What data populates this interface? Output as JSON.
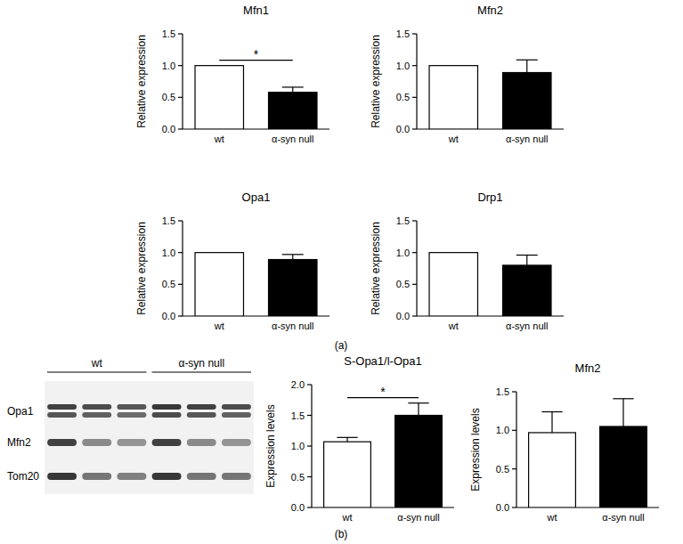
{
  "chart_data": [
    {
      "type": "bar",
      "title": "Mfn1",
      "ylabel": "Relative expression",
      "categories": [
        "wt",
        "α-syn null"
      ],
      "values": [
        1.0,
        0.58
      ],
      "errors": [
        0,
        0.08
      ],
      "colors": [
        "#ffffff",
        "#000000"
      ],
      "ylim": [
        0,
        1.5
      ],
      "yticks": [
        {
          "value": 0,
          "label": "0.0"
        },
        {
          "value": 0.5,
          "label": "0.5"
        },
        {
          "value": 1,
          "label": "1.0"
        },
        {
          "value": 1.5,
          "label": "1.5"
        }
      ],
      "grid": false,
      "annotations": [
        {
          "text": "*",
          "categories": [
            "wt",
            "α-syn null"
          ]
        }
      ]
    },
    {
      "type": "bar",
      "title": "Mfn2",
      "ylabel": "Relative expression",
      "categories": [
        "wt",
        "α-syn null"
      ],
      "values": [
        1.0,
        0.89
      ],
      "errors": [
        0,
        0.2
      ],
      "colors": [
        "#ffffff",
        "#000000"
      ],
      "ylim": [
        0,
        1.5
      ],
      "yticks": [
        {
          "value": 0,
          "label": "0.0"
        },
        {
          "value": 0.5,
          "label": "0.5"
        },
        {
          "value": 1,
          "label": "1.0"
        },
        {
          "value": 1.5,
          "label": "1.5"
        }
      ],
      "grid": false
    },
    {
      "type": "bar",
      "title": "Opa1",
      "ylabel": "Relative expression",
      "categories": [
        "wt",
        "α-syn null"
      ],
      "values": [
        1.0,
        0.89
      ],
      "errors": [
        0,
        0.08
      ],
      "colors": [
        "#ffffff",
        "#000000"
      ],
      "ylim": [
        0,
        1.5
      ],
      "yticks": [
        {
          "value": 0,
          "label": "0.0"
        },
        {
          "value": 0.5,
          "label": "0.5"
        },
        {
          "value": 1,
          "label": "1.0"
        },
        {
          "value": 1.5,
          "label": "1.5"
        }
      ],
      "grid": false
    },
    {
      "type": "bar",
      "title": "Drp1",
      "ylabel": "Relative expression",
      "categories": [
        "wt",
        "α-syn null"
      ],
      "values": [
        1.0,
        0.8
      ],
      "errors": [
        0,
        0.16
      ],
      "colors": [
        "#ffffff",
        "#000000"
      ],
      "ylim": [
        0,
        1.5
      ],
      "yticks": [
        {
          "value": 0,
          "label": "0.0"
        },
        {
          "value": 0.5,
          "label": "0.5"
        },
        {
          "value": 1,
          "label": "1.0"
        },
        {
          "value": 1.5,
          "label": "1.5"
        }
      ],
      "grid": false
    },
    {
      "type": "bar",
      "title": "S-Opa1/l-Opa1",
      "ylabel": "Expression levels",
      "categories": [
        "wt",
        "α-syn null"
      ],
      "values": [
        1.07,
        1.5
      ],
      "errors": [
        0.07,
        0.2
      ],
      "colors": [
        "#ffffff",
        "#000000"
      ],
      "ylim": [
        0,
        2
      ],
      "yticks": [
        {
          "value": 0,
          "label": "0.0"
        },
        {
          "value": 0.5,
          "label": "0.5"
        },
        {
          "value": 1,
          "label": "1.0"
        },
        {
          "value": 1.5,
          "label": "1.5"
        },
        {
          "value": 2,
          "label": "2.0"
        }
      ],
      "grid": false,
      "annotations": [
        {
          "text": "*",
          "categories": [
            "wt",
            "α-syn null"
          ]
        }
      ]
    },
    {
      "type": "bar",
      "title": "Mfn2",
      "ylabel": "Expression levels",
      "categories": [
        "wt",
        "α-syn null"
      ],
      "values": [
        0.97,
        1.05
      ],
      "errors": [
        0.27,
        0.36
      ],
      "colors": [
        "#ffffff",
        "#000000"
      ],
      "ylim": [
        0,
        1.5
      ],
      "yticks": [
        {
          "value": 0,
          "label": "0.0"
        },
        {
          "value": 0.5,
          "label": "0.5"
        },
        {
          "value": 1,
          "label": "1.0"
        },
        {
          "value": 1.5,
          "label": "1.5"
        }
      ],
      "grid": false
    }
  ],
  "panels": [
    {
      "label": "(a)"
    },
    {
      "label": "(b)"
    }
  ],
  "blot": {
    "lanes": [
      {
        "label": "wt",
        "count": 3
      },
      {
        "label": "α-syn null",
        "count": 3
      }
    ],
    "rows": [
      {
        "label": "Opa1"
      },
      {
        "label": "Mfn2"
      },
      {
        "label": "Tom20"
      }
    ]
  }
}
